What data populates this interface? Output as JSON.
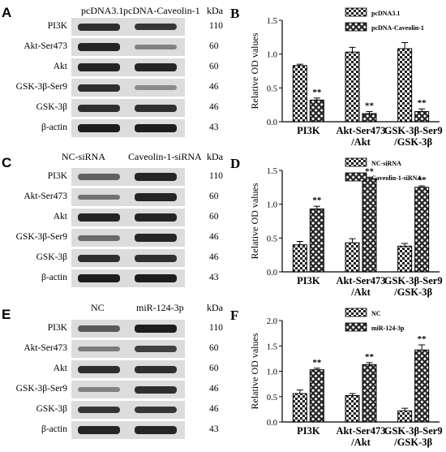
{
  "panels_blot": [
    {
      "letter": "A",
      "lanes": [
        "pcDNA3.1",
        "pcDNA-Caveolin-1"
      ],
      "kda_label": "kDa",
      "rows": [
        {
          "label": "PI3K",
          "kda": "110",
          "intensity": [
            0.85,
            0.8
          ]
        },
        {
          "label": "Akt-Ser473",
          "kda": "60",
          "intensity": [
            0.9,
            0.35
          ]
        },
        {
          "label": "Akt",
          "kda": "60",
          "intensity": [
            0.9,
            0.9
          ]
        },
        {
          "label": "GSK-3β-Ser9",
          "kda": "46",
          "intensity": [
            0.85,
            0.3
          ]
        },
        {
          "label": "GSK-3β",
          "kda": "46",
          "intensity": [
            0.85,
            0.85
          ]
        },
        {
          "label": "β-actin",
          "kda": "43",
          "intensity": [
            0.95,
            0.95
          ]
        }
      ]
    },
    {
      "letter": "C",
      "lanes": [
        "NC-siRNA",
        "Caveolin-1-siRNA"
      ],
      "kda_label": "kDa",
      "rows": [
        {
          "label": "PI3K",
          "kda": "110",
          "intensity": [
            0.55,
            0.9
          ]
        },
        {
          "label": "Akt-Ser473",
          "kda": "60",
          "intensity": [
            0.45,
            0.9
          ]
        },
        {
          "label": "Akt",
          "kda": "60",
          "intensity": [
            0.9,
            0.9
          ]
        },
        {
          "label": "GSK-3β-Ser9",
          "kda": "46",
          "intensity": [
            0.5,
            0.9
          ]
        },
        {
          "label": "GSK-3β",
          "kda": "46",
          "intensity": [
            0.85,
            0.85
          ]
        },
        {
          "label": "β-actin",
          "kda": "43",
          "intensity": [
            0.95,
            0.95
          ]
        }
      ]
    },
    {
      "letter": "E",
      "lanes": [
        "NC",
        "miR-124-3p"
      ],
      "kda_label": "kDa",
      "rows": [
        {
          "label": "PI3K",
          "kda": "110",
          "intensity": [
            0.6,
            0.95
          ]
        },
        {
          "label": "Akt-Ser473",
          "kda": "60",
          "intensity": [
            0.4,
            0.75
          ]
        },
        {
          "label": "Akt",
          "kda": "60",
          "intensity": [
            0.85,
            0.85
          ]
        },
        {
          "label": "GSK-3β-Ser9",
          "kda": "46",
          "intensity": [
            0.35,
            0.85
          ]
        },
        {
          "label": "GSK-3β",
          "kda": "46",
          "intensity": [
            0.8,
            0.8
          ]
        },
        {
          "label": "β-actin",
          "kda": "43",
          "intensity": [
            0.9,
            0.9
          ]
        }
      ]
    }
  ],
  "chart_data": [
    {
      "letter": "B",
      "type": "bar",
      "ylabel": "Relative OD values",
      "ylim": [
        0,
        1.5
      ],
      "yticks": [
        "0.0",
        "0.5",
        "1.0",
        "1.5"
      ],
      "categories": [
        [
          "PI3K"
        ],
        [
          "Akt-Ser473",
          "/Akt"
        ],
        [
          "GSK-3β-Ser9",
          "/GSK-3β"
        ]
      ],
      "series": [
        {
          "name": "pcDNA3.1",
          "values": [
            0.83,
            1.03,
            1.08
          ],
          "errors": [
            0.02,
            0.07,
            0.09
          ]
        },
        {
          "name": "pcDNA-Caveolin-1",
          "values": [
            0.32,
            0.12,
            0.15
          ],
          "errors": [
            0.03,
            0.03,
            0.04
          ]
        }
      ],
      "annotations": [
        "**",
        "**",
        "**"
      ],
      "legend_position": "top-right"
    },
    {
      "letter": "D",
      "type": "bar",
      "ylabel": "Relative OD values",
      "ylim": [
        0,
        1.5
      ],
      "yticks": [
        "0.0",
        "0.5",
        "1.0",
        "1.5"
      ],
      "categories": [
        [
          "PI3K"
        ],
        [
          "Akt-Ser473",
          "/Akt"
        ],
        [
          "GSK-3β-Ser9",
          "/GSK-3β"
        ]
      ],
      "series": [
        {
          "name": "NC-siRNA",
          "values": [
            0.4,
            0.43,
            0.38
          ],
          "errors": [
            0.05,
            0.06,
            0.04
          ]
        },
        {
          "name": "Caveolin-1-siRNA",
          "values": [
            0.93,
            1.38,
            1.25
          ],
          "errors": [
            0.04,
            0.02,
            0.02
          ]
        }
      ],
      "annotations": [
        "**",
        "**",
        "**"
      ],
      "legend_position": "top-right"
    },
    {
      "letter": "F",
      "type": "bar",
      "ylabel": "Relative OD values",
      "ylim": [
        0,
        2.0
      ],
      "yticks": [
        "0.0",
        "0.5",
        "1.0",
        "1.5",
        "2.0"
      ],
      "categories": [
        [
          "PI3K"
        ],
        [
          "Akt-Ser473",
          "/Akt"
        ],
        [
          "GSK-3β-Ser9",
          "/GSK-3β"
        ]
      ],
      "series": [
        {
          "name": "NC",
          "values": [
            0.56,
            0.52,
            0.22
          ],
          "errors": [
            0.07,
            0.04,
            0.05
          ]
        },
        {
          "name": "miR-124-3p",
          "values": [
            1.03,
            1.13,
            1.42
          ],
          "errors": [
            0.03,
            0.04,
            0.1
          ]
        }
      ],
      "annotations": [
        "**",
        "**",
        "**"
      ],
      "legend_position": "top-right"
    }
  ]
}
